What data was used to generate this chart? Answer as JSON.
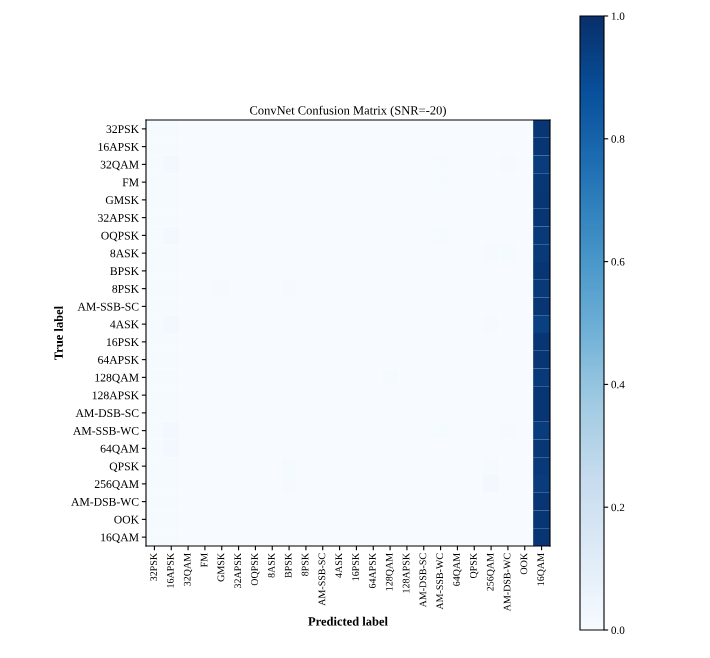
{
  "chart_data": {
    "type": "heatmap",
    "title": "ConvNet Confusion Matrix (SNR=-20)",
    "xlabel": "Predicted label",
    "ylabel": "True label",
    "categories": [
      "32PSK",
      "16APSK",
      "32QAM",
      "FM",
      "GMSK",
      "32APSK",
      "OQPSK",
      "8ASK",
      "BPSK",
      "8PSK",
      "AM-SSB-SC",
      "4ASK",
      "16PSK",
      "64APSK",
      "128QAM",
      "128APSK",
      "AM-DSB-SC",
      "AM-SSB-WC",
      "64QAM",
      "QPSK",
      "256QAM",
      "AM-DSB-WC",
      "OOK",
      "16QAM"
    ],
    "y_categories": [
      "32PSK",
      "16APSK",
      "32QAM",
      "FM",
      "GMSK",
      "32APSK",
      "OQPSK",
      "8ASK",
      "BPSK",
      "8PSK",
      "AM-SSB-SC",
      "4ASK",
      "16PSK",
      "64APSK",
      "128QAM",
      "128APSK",
      "AM-DSB-SC",
      "AM-SSB-WC",
      "64QAM",
      "QPSK",
      "256QAM",
      "AM-DSB-WC",
      "OOK",
      "16QAM"
    ],
    "cells": [
      [
        0.01,
        0.01,
        0,
        0,
        0,
        0,
        0,
        0,
        0,
        0,
        0,
        0,
        0,
        0,
        0,
        0,
        0,
        0,
        0,
        0,
        0,
        0,
        0,
        0.98
      ],
      [
        0.01,
        0.01,
        0,
        0,
        0,
        0,
        0,
        0,
        0,
        0,
        0,
        0,
        0,
        0,
        0,
        0,
        0,
        0,
        0,
        0,
        0,
        0,
        0,
        0.98
      ],
      [
        0.01,
        0.02,
        0,
        0,
        0,
        0,
        0,
        0,
        0,
        0,
        0,
        0,
        0,
        0,
        0,
        0,
        0,
        0.01,
        0,
        0,
        0,
        0.01,
        0,
        0.95
      ],
      [
        0.01,
        0.01,
        0,
        0,
        0,
        0,
        0,
        0,
        0,
        0,
        0,
        0,
        0,
        0,
        0,
        0,
        0,
        0.01,
        0,
        0,
        0,
        0,
        0,
        0.97
      ],
      [
        0.01,
        0.01,
        0,
        0,
        0,
        0,
        0,
        0,
        0,
        0,
        0,
        0,
        0,
        0,
        0,
        0,
        0,
        0,
        0,
        0,
        0,
        0,
        0,
        0.98
      ],
      [
        0.01,
        0.01,
        0,
        0,
        0,
        0,
        0,
        0,
        0,
        0,
        0,
        0,
        0,
        0,
        0,
        0,
        0,
        0,
        0,
        0,
        0,
        0,
        0,
        0.98
      ],
      [
        0.01,
        0.02,
        0,
        0,
        0,
        0,
        0,
        0,
        0,
        0,
        0,
        0,
        0,
        0,
        0,
        0,
        0,
        0.01,
        0,
        0,
        0,
        0,
        0,
        0.96
      ],
      [
        0.01,
        0.01,
        0,
        0,
        0,
        0,
        0,
        0,
        0,
        0,
        0,
        0,
        0,
        0,
        0,
        0,
        0,
        0,
        0,
        0,
        0.01,
        0.01,
        0,
        0.96
      ],
      [
        0.01,
        0.01,
        0,
        0,
        0,
        0,
        0,
        0,
        0,
        0,
        0,
        0,
        0,
        0,
        0,
        0,
        0,
        0,
        0,
        0,
        0,
        0,
        0,
        0.98
      ],
      [
        0.01,
        0.01,
        0,
        0,
        0.01,
        0,
        0,
        0,
        0.01,
        0,
        0,
        0,
        0,
        0,
        0,
        0,
        0,
        0,
        0,
        0,
        0,
        0,
        0,
        0.96
      ],
      [
        0.01,
        0.01,
        0,
        0,
        0,
        0,
        0,
        0,
        0,
        0,
        0,
        0,
        0,
        0,
        0,
        0,
        0,
        0,
        0,
        0,
        0,
        0,
        0,
        0.98
      ],
      [
        0.01,
        0.02,
        0,
        0,
        0,
        0,
        0,
        0,
        0,
        0,
        0,
        0,
        0,
        0,
        0,
        0,
        0,
        0,
        0,
        0,
        0.01,
        0,
        0,
        0.94
      ],
      [
        0.01,
        0.01,
        0,
        0,
        0,
        0,
        0,
        0,
        0,
        0,
        0,
        0,
        0,
        0,
        0,
        0,
        0,
        0,
        0,
        0,
        0,
        0,
        0,
        0.98
      ],
      [
        0.01,
        0.01,
        0,
        0,
        0,
        0,
        0,
        0,
        0,
        0,
        0,
        0,
        0,
        0,
        0,
        0,
        0,
        0,
        0,
        0,
        0,
        0,
        0,
        0.98
      ],
      [
        0.01,
        0.01,
        0,
        0,
        0,
        0,
        0,
        0,
        0,
        0,
        0,
        0,
        0,
        0,
        0.01,
        0,
        0,
        0,
        0,
        0,
        0,
        0,
        0,
        0.96
      ],
      [
        0.01,
        0.01,
        0,
        0,
        0,
        0,
        0,
        0,
        0,
        0,
        0,
        0,
        0,
        0,
        0,
        0,
        0,
        0,
        0,
        0,
        0,
        0,
        0,
        0.98
      ],
      [
        0.01,
        0.01,
        0,
        0,
        0,
        0,
        0,
        0,
        0,
        0,
        0,
        0,
        0,
        0,
        0,
        0,
        0,
        0,
        0,
        0,
        0,
        0,
        0,
        0.98
      ],
      [
        0.01,
        0.02,
        0,
        0,
        0,
        0,
        0,
        0,
        0,
        0,
        0,
        0,
        0,
        0,
        0,
        0,
        0,
        0.01,
        0,
        0,
        0,
        0.01,
        0,
        0.95
      ],
      [
        0.01,
        0.02,
        0,
        0,
        0,
        0,
        0,
        0,
        0,
        0,
        0,
        0,
        0,
        0,
        0,
        0,
        0,
        0,
        0,
        0,
        0,
        0,
        0,
        0.97
      ],
      [
        0.01,
        0.01,
        0,
        0,
        0,
        0,
        0,
        0,
        0.01,
        0,
        0,
        0,
        0,
        0,
        0,
        0,
        0,
        0,
        0,
        0,
        0.01,
        0,
        0,
        0.96
      ],
      [
        0.01,
        0.01,
        0,
        0,
        0,
        0,
        0,
        0,
        0.01,
        0,
        0,
        0,
        0,
        0,
        0,
        0,
        0,
        0,
        0,
        0,
        0.02,
        0,
        0,
        0.95
      ],
      [
        0.01,
        0.01,
        0,
        0,
        0,
        0,
        0,
        0,
        0,
        0,
        0,
        0,
        0,
        0,
        0,
        0,
        0,
        0,
        0,
        0,
        0,
        0,
        0,
        0.98
      ],
      [
        0.01,
        0.01,
        0,
        0,
        0,
        0,
        0,
        0,
        0,
        0,
        0,
        0,
        0,
        0,
        0,
        0,
        0,
        0,
        0,
        0,
        0,
        0,
        0,
        0.98
      ],
      [
        0.01,
        0.01,
        0,
        0,
        0,
        0,
        0,
        0,
        0,
        0,
        0,
        0,
        0,
        0,
        0,
        0,
        0,
        0,
        0,
        0,
        0,
        0,
        0,
        0.98
      ]
    ],
    "clim": [
      0.0,
      1.0
    ],
    "cticks": [
      {
        "value": 0.0,
        "label": "0.0"
      },
      {
        "value": 0.2,
        "label": "0.2"
      },
      {
        "value": 0.4,
        "label": "0.4"
      },
      {
        "value": 0.6,
        "label": "0.6"
      },
      {
        "value": 0.8,
        "label": "0.8"
      },
      {
        "value": 1.0,
        "label": "1.0"
      }
    ]
  }
}
